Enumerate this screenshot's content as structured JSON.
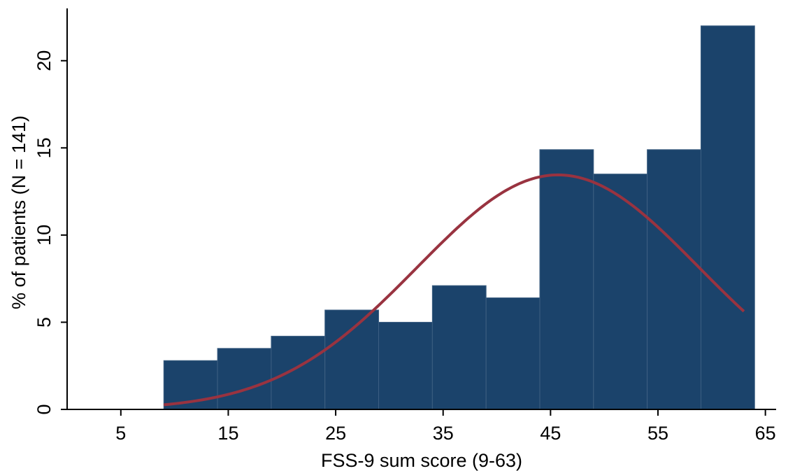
{
  "chart_data": {
    "type": "bar",
    "subtype": "histogram",
    "xlabel": "FSS-9 sum score (9-63)",
    "ylabel": "% of patients (N = 141)",
    "xlim": [
      0,
      66
    ],
    "ylim": [
      0,
      23
    ],
    "xticks": [
      5,
      15,
      25,
      35,
      45,
      55,
      65
    ],
    "yticks": [
      0,
      5,
      10,
      15,
      20
    ],
    "bins": [
      {
        "x0": 9,
        "x1": 14,
        "value": 2.8
      },
      {
        "x0": 14,
        "x1": 19,
        "value": 3.5
      },
      {
        "x0": 19,
        "x1": 24,
        "value": 4.2
      },
      {
        "x0": 24,
        "x1": 29,
        "value": 5.7
      },
      {
        "x0": 29,
        "x1": 34,
        "value": 5.0
      },
      {
        "x0": 34,
        "x1": 39,
        "value": 7.1
      },
      {
        "x0": 39,
        "x1": 44,
        "value": 6.4
      },
      {
        "x0": 44,
        "x1": 49,
        "value": 14.9
      },
      {
        "x0": 49,
        "x1": 54,
        "value": 13.5
      },
      {
        "x0": 54,
        "x1": 59,
        "value": 14.9
      },
      {
        "x0": 59,
        "x1": 64,
        "value": 22.0
      }
    ],
    "normal_curve": {
      "mean": 45.7,
      "peak": 13.45,
      "sd": 13.1,
      "x_range": [
        9,
        63
      ]
    },
    "grid": false,
    "colors": {
      "bar": "#1b436b",
      "bar_edge": "#3d5f82",
      "curve": "#993340",
      "axis": "#000000"
    }
  }
}
